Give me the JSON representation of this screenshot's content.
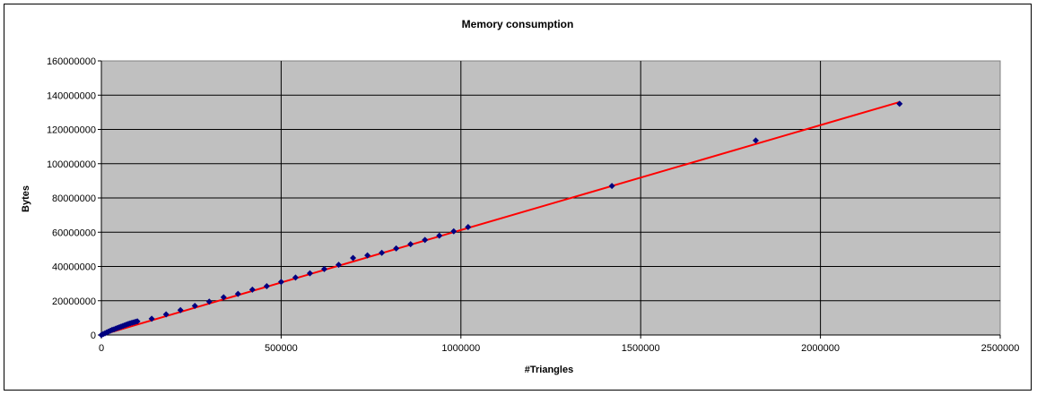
{
  "chart_data": {
    "type": "scatter",
    "title": "Memory consumption",
    "xlabel": "#Triangles",
    "ylabel": "Bytes",
    "xlim": [
      0,
      2500000
    ],
    "ylim": [
      0,
      160000000
    ],
    "x_ticks": [
      "0",
      "500000",
      "1000000",
      "1500000",
      "2000000",
      "2500000"
    ],
    "y_ticks": [
      "0",
      "20000000",
      "40000000",
      "60000000",
      "80000000",
      "100000000",
      "120000000",
      "140000000",
      "160000000"
    ],
    "grid": true,
    "legend": "none",
    "colors": {
      "plot_area": "#c0c0c0",
      "marker": "#000080",
      "trendline": "#ff0000",
      "gridline": "#000000"
    },
    "series": [
      {
        "marker": "diamond",
        "x": [
          0,
          5000,
          10000,
          15000,
          20000,
          25000,
          30000,
          35000,
          40000,
          45000,
          50000,
          55000,
          60000,
          65000,
          70000,
          75000,
          80000,
          85000,
          90000,
          95000,
          100000,
          140000,
          180000,
          220000,
          260000,
          300000,
          340000,
          380000,
          420000,
          460000,
          500000,
          540000,
          580000,
          620000,
          660000,
          700000,
          740000,
          780000,
          820000,
          860000,
          900000,
          940000,
          980000,
          1020000,
          1420000,
          1820000,
          2220000
        ],
        "y": [
          0,
          500000,
          1000000,
          1500000,
          2000000,
          2500000,
          3000000,
          3300000,
          3700000,
          4100000,
          4500000,
          4900000,
          5300000,
          5700000,
          6100000,
          6500000,
          6800000,
          7100000,
          7400000,
          7700000,
          8000000,
          9500000,
          12000000,
          14500000,
          17000000,
          19500000,
          22000000,
          24000000,
          26500000,
          28500000,
          31000000,
          33500000,
          36000000,
          38500000,
          41000000,
          45000000,
          46500000,
          48000000,
          50500000,
          53000000,
          55500000,
          58000000,
          60500000,
          63000000,
          87000000,
          113500000,
          135000000
        ]
      }
    ],
    "trendline": {
      "type": "linear",
      "x": [
        0,
        2220000
      ],
      "y": [
        0,
        136000000
      ]
    }
  }
}
